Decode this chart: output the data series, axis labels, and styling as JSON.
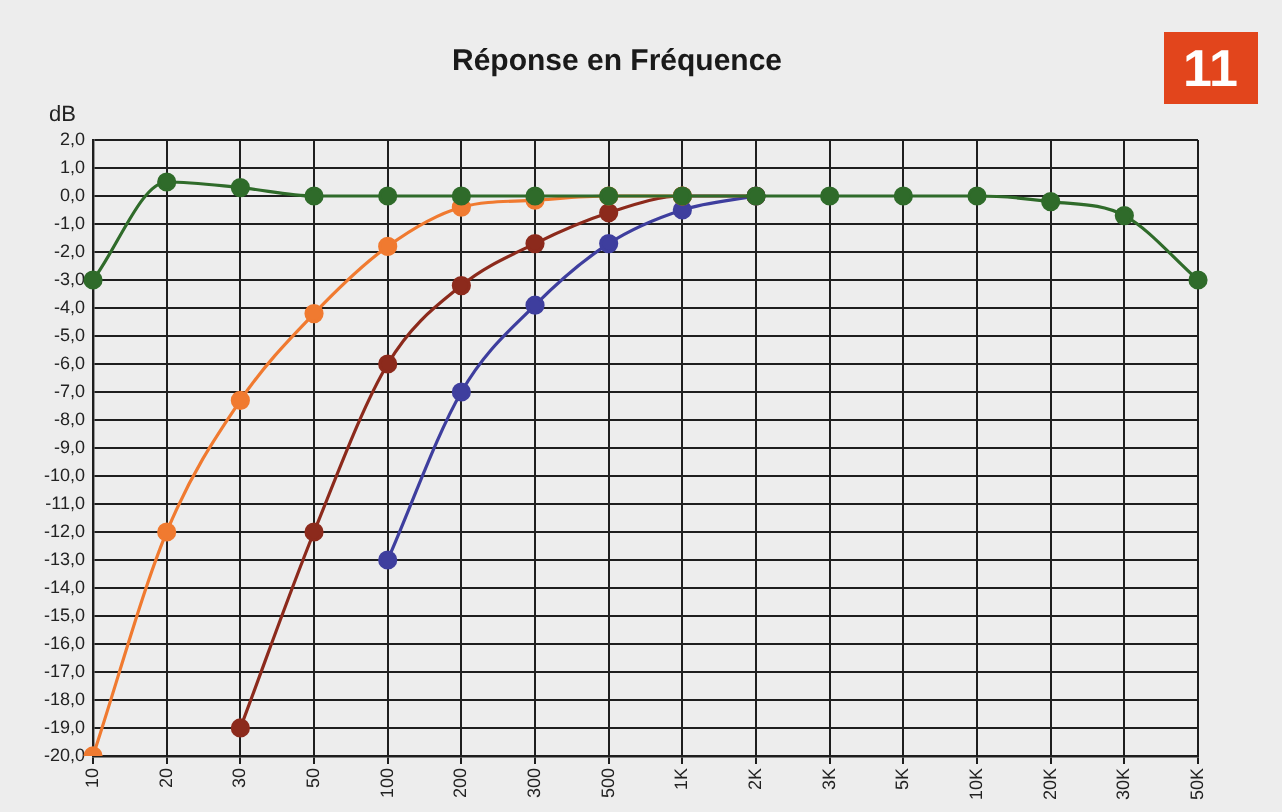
{
  "chart_data": {
    "type": "line",
    "title": "Réponse en Fréquence",
    "ylabel": "dB",
    "annotations": [
      "11"
    ],
    "categories": [
      "10",
      "20",
      "30",
      "50",
      "100",
      "200",
      "300",
      "500",
      "1K",
      "2K",
      "3K",
      "5K",
      "10K",
      "20K",
      "30K",
      "50K"
    ],
    "series": [
      {
        "color": "#2f6b2a",
        "values": [
          -3,
          0.5,
          0.3,
          0,
          0,
          0,
          0,
          0,
          0,
          0,
          0,
          0,
          0,
          -0.2,
          -0.7,
          -3
        ]
      },
      {
        "color": "#f07a30",
        "values": [
          -20,
          -12,
          -7.3,
          -4.2,
          -1.8,
          -0.4,
          -0.15,
          0,
          0,
          null,
          null,
          null,
          null,
          null,
          null,
          null
        ]
      },
      {
        "color": "#8c2a1c",
        "values": [
          null,
          null,
          -19,
          -12,
          -6,
          -3.2,
          -1.7,
          -0.6,
          0,
          0,
          null,
          null,
          null,
          null,
          null,
          null
        ]
      },
      {
        "color": "#3e3e9e",
        "values": [
          null,
          null,
          null,
          null,
          -13,
          -7,
          -3.9,
          -1.7,
          -0.5,
          0,
          null,
          null,
          null,
          null,
          null,
          null
        ]
      }
    ],
    "ylim": [
      -20,
      2
    ],
    "yticks": [
      {
        "value": 2,
        "label": "2,0"
      },
      {
        "value": 1,
        "label": "1,0"
      },
      {
        "value": 0,
        "label": "0,0"
      },
      {
        "value": -1,
        "label": "-1,0"
      },
      {
        "value": -2,
        "label": "-2,0"
      },
      {
        "value": -3,
        "label": "-3,0"
      },
      {
        "value": -4,
        "label": "-4,0"
      },
      {
        "value": -5,
        "label": "-5,0"
      },
      {
        "value": -6,
        "label": "-6,0"
      },
      {
        "value": -7,
        "label": "-7,0"
      },
      {
        "value": -8,
        "label": "-8,0"
      },
      {
        "value": -9,
        "label": "-9,0"
      },
      {
        "value": -10,
        "label": "-10,0"
      },
      {
        "value": -11,
        "label": "-11,0"
      },
      {
        "value": -12,
        "label": "-12,0"
      },
      {
        "value": -13,
        "label": "-13,0"
      },
      {
        "value": -14,
        "label": "-14,0"
      },
      {
        "value": -15,
        "label": "-15,0"
      },
      {
        "value": -16,
        "label": "-16,0"
      },
      {
        "value": -17,
        "label": "-17,0"
      },
      {
        "value": -18,
        "label": "-18,0"
      },
      {
        "value": -19,
        "label": "-19,0"
      },
      {
        "value": -20,
        "label": "-20,0"
      }
    ],
    "grid": true,
    "legend": false,
    "marker": "circle",
    "line_style": "solid"
  }
}
